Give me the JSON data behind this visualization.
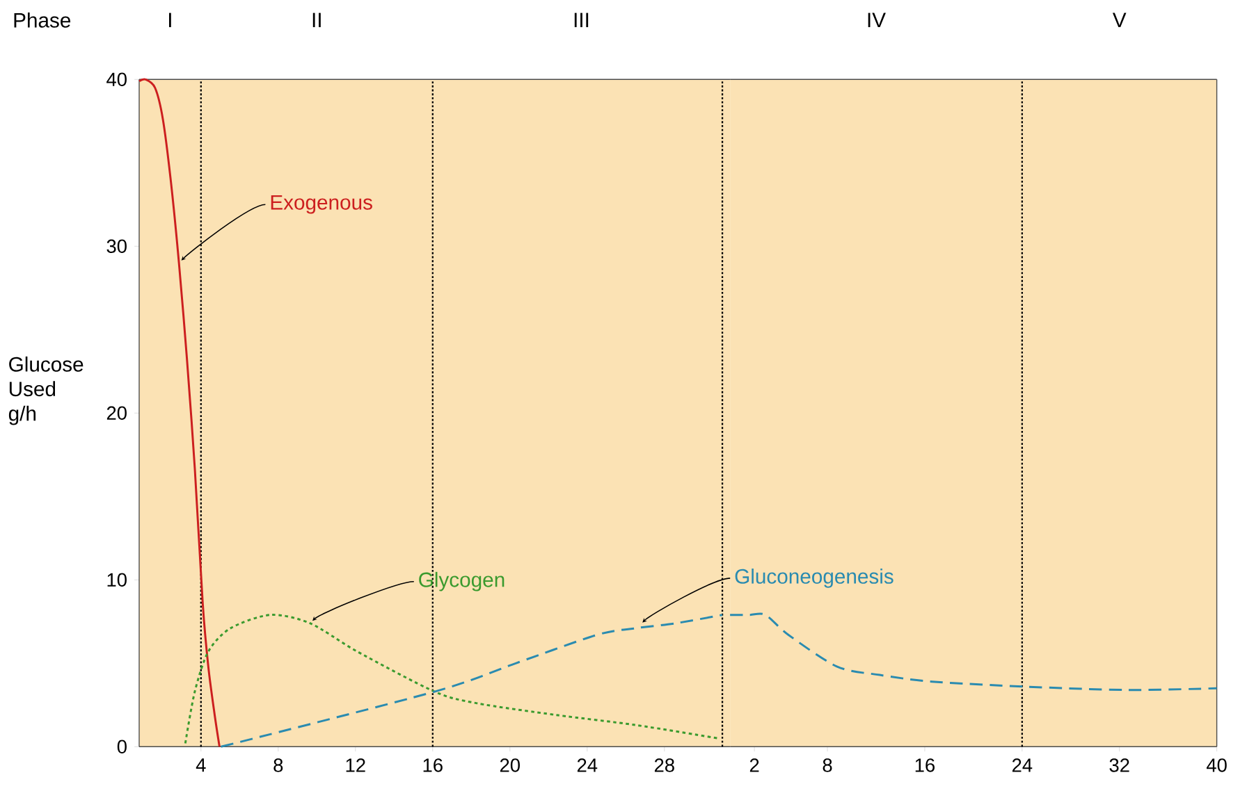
{
  "chart_data": [
    {
      "type": "line",
      "ylabel": "Glucose Used g/h",
      "annotations": [
        "Phase"
      ],
      "xlim": [
        0.8,
        31.4
      ],
      "ylim": [
        0,
        40
      ],
      "xticks": [
        4,
        8,
        12,
        16,
        20,
        24,
        28
      ],
      "yticks": [
        0,
        10,
        20,
        30,
        40
      ],
      "ref_lines": [
        {
          "axis": "x",
          "value": 4,
          "line_style": "dotted"
        },
        {
          "axis": "x",
          "value": 16,
          "line_style": "dotted"
        },
        {
          "axis": "x",
          "value": 31,
          "line_style": "dotted"
        }
      ],
      "bands": [
        {
          "axis": "x",
          "from": 0.8,
          "to": 4,
          "label": "I",
          "color": "#fbe2b4"
        },
        {
          "axis": "x",
          "from": 4,
          "to": 16,
          "label": "II",
          "color": "#fbe2b4"
        },
        {
          "axis": "x",
          "from": 16,
          "to": 31.4,
          "label": "III",
          "color": "#fbe2b4"
        }
      ],
      "series": [
        {
          "name": "Exogenous",
          "color": "#cc1f1f",
          "line_style": "solid",
          "x": [
            0.8,
            1.13,
            1.62,
            2.03,
            2.45,
            2.86,
            3.27,
            3.68,
            4.09,
            4.38,
            4.71,
            4.96
          ],
          "values": [
            39.9,
            40,
            39.5,
            37.6,
            33.8,
            29.0,
            23.3,
            16.7,
            8.6,
            4.8,
            1.9,
            0
          ]
        },
        {
          "name": "Glycogen",
          "color": "#3a9a2e",
          "line_style": "dotted",
          "x": [
            3.19,
            3.68,
            4.38,
            5.53,
            7.6,
            9.65,
            12.1,
            16.1,
            18.3,
            22.4,
            26.5,
            30.8
          ],
          "values": [
            0.2,
            3.3,
            5.7,
            7.1,
            7.9,
            7.4,
            5.7,
            3.3,
            2.6,
            1.9,
            1.3,
            0.5
          ]
        },
        {
          "color": "#2a8bb0",
          "line_style": "dashed",
          "x": [
            5.04,
            16.1,
            20.3,
            24.5,
            26.5,
            28.6,
            31
          ],
          "values": [
            0,
            3.3,
            5.0,
            6.7,
            7.1,
            7.4,
            7.9
          ]
        }
      ]
    },
    {
      "type": "line",
      "tick_labels": "x",
      "xlim": [
        0,
        40
      ],
      "ylim": [
        0,
        40
      ],
      "xticks": [
        2,
        8,
        16,
        24,
        32,
        40
      ],
      "ref_lines": [
        {
          "axis": "x",
          "value": 24,
          "line_style": "dotted"
        }
      ],
      "bands": [
        {
          "axis": "x",
          "from": 0,
          "to": 24,
          "label": "IV",
          "color": "#fbe2b4"
        },
        {
          "axis": "x",
          "from": 24,
          "to": 40,
          "label": "V",
          "color": "#fbe2b4"
        }
      ],
      "series": [
        {
          "name": "Gluconeogenesis",
          "color": "#2a8bb0",
          "line_style": "dashed",
          "x": [
            0,
            1.6,
            2.9,
            4.8,
            8.8,
            12.3,
            16.6,
            24.2,
            32.6,
            40
          ],
          "values": [
            7.9,
            7.9,
            7.9,
            6.7,
            4.8,
            4.3,
            3.9,
            3.6,
            3.4,
            3.5
          ]
        }
      ]
    }
  ]
}
